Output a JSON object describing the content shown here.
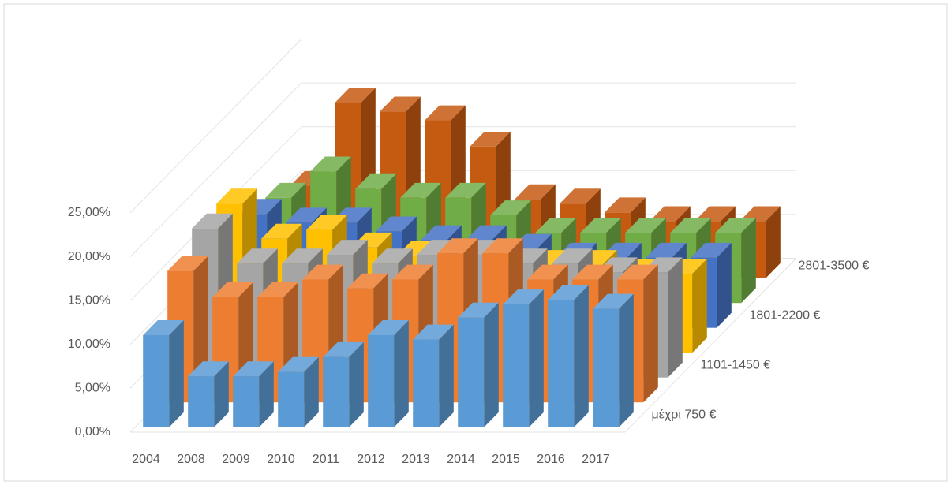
{
  "chart_data": {
    "type": "bar3d",
    "categories": [
      "2004",
      "2008",
      "2009",
      "2010",
      "2011",
      "2012",
      "2013",
      "2014",
      "2015",
      "2016",
      "2017"
    ],
    "series": [
      {
        "name": "μέχρι 750 €",
        "color": "#5b9bd5",
        "values": [
          10.5,
          5.8,
          5.8,
          6.3,
          8,
          10.5,
          10,
          12.5,
          14,
          14.5,
          13.5
        ]
      },
      {
        "name": null,
        "color": "#ed7d31",
        "values": [
          15,
          12,
          12,
          14,
          13,
          14,
          17,
          17,
          14,
          14,
          14
        ]
      },
      {
        "name": "1101-1450 €",
        "color": "#a5a5a5",
        "values": [
          17,
          13,
          13,
          14,
          13,
          14,
          14,
          13,
          13,
          12,
          12
        ]
      },
      {
        "name": null,
        "color": "#ffc000",
        "values": [
          17,
          13,
          14,
          12,
          11,
          11,
          10,
          10,
          10,
          9,
          9
        ]
      },
      {
        "name": "1801-2200 €",
        "color": "#4472c4",
        "values": [
          13,
          12,
          12,
          11,
          10,
          10,
          9,
          8,
          8,
          8,
          8
        ]
      },
      {
        "name": null,
        "color": "#70ad47",
        "values": [
          12,
          15,
          13,
          12,
          12,
          10,
          8,
          8,
          8,
          8,
          8
        ]
      },
      {
        "name": "2801-3500 €",
        "color": "#c55a11",
        "values": [
          10.5,
          20,
          19,
          18,
          15,
          9,
          8.5,
          7.5,
          6.5,
          6.5,
          6.5
        ]
      }
    ],
    "ylim": [
      0,
      25
    ],
    "yticks": [
      {
        "value": 0,
        "label": "0,00%"
      },
      {
        "value": 5,
        "label": "5,00%"
      },
      {
        "value": 10,
        "label": "10,00%"
      },
      {
        "value": 15,
        "label": "15,00%"
      },
      {
        "value": 20,
        "label": "20,00%"
      },
      {
        "value": 25,
        "label": "25,00%"
      }
    ],
    "grid": true
  }
}
